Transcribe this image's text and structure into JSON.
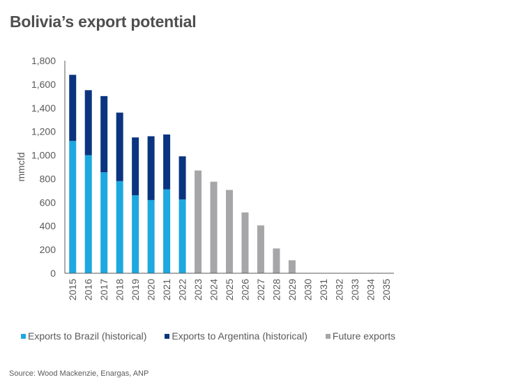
{
  "title": "Bolivia’s export potential",
  "source": "Source: Wood Mackenzie,  Enargas, ANP",
  "colors": {
    "brazil": "#1da8e0",
    "argentina": "#0b3480",
    "future": "#a6a6a9",
    "axis": "#595959"
  },
  "chart_data": {
    "type": "bar",
    "stacked": true,
    "title": "Bolivia’s export potential",
    "xlabel": "",
    "ylabel": "mmcfd",
    "ylim": [
      0,
      1800
    ],
    "yticks": [
      0,
      200,
      400,
      600,
      800,
      1000,
      1200,
      1400,
      1600,
      1800
    ],
    "ytick_labels": [
      "0",
      "200",
      "400",
      "600",
      "800",
      "1,000",
      "1,200",
      "1,400",
      "1,600",
      "1,800"
    ],
    "grid": false,
    "legend_position": "bottom",
    "categories": [
      "2015",
      "2016",
      "2017",
      "2018",
      "2019",
      "2020",
      "2021",
      "2022",
      "2023",
      "2024",
      "2025",
      "2026",
      "2027",
      "2028",
      "2029",
      "2030",
      "2031",
      "2032",
      "2033",
      "2034",
      "2035"
    ],
    "series": [
      {
        "name": "Exports to Brazil (historical)",
        "color_key": "brazil",
        "values": [
          1120,
          1000,
          855,
          780,
          660,
          620,
          710,
          625,
          0,
          0,
          0,
          0,
          0,
          0,
          0,
          0,
          0,
          0,
          0,
          0,
          0
        ]
      },
      {
        "name": "Exports to Argentina (historical)",
        "color_key": "argentina",
        "values": [
          560,
          550,
          645,
          580,
          490,
          540,
          465,
          365,
          0,
          0,
          0,
          0,
          0,
          0,
          0,
          0,
          0,
          0,
          0,
          0,
          0
        ]
      },
      {
        "name": "Future exports",
        "color_key": "future",
        "values": [
          0,
          0,
          0,
          0,
          0,
          0,
          0,
          0,
          870,
          775,
          705,
          515,
          405,
          210,
          110,
          0,
          0,
          0,
          0,
          0,
          0
        ]
      }
    ]
  }
}
